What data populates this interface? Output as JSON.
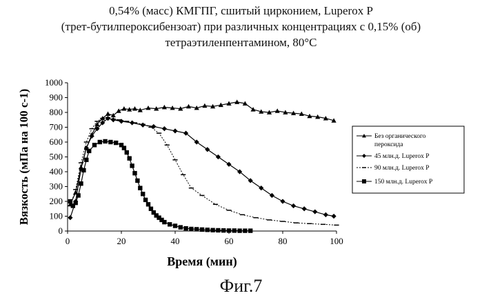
{
  "title_lines": [
    "0,54% (масс) КМГПГ, сшитый цирконием, Luperox P",
    "(трет-бутилпероксибензоат) при различных концентрациях с 0,15% (об)",
    "тетраэтиленпентамином, 80°С"
  ],
  "caption": "Фиг.7",
  "chart_data": {
    "type": "line",
    "xlabel": "Время (мин)",
    "ylabel": "Вязкость (мПа на 100 с-1)",
    "xlim": [
      0,
      100
    ],
    "ylim": [
      0,
      1000
    ],
    "xticks": [
      0,
      20,
      40,
      60,
      80,
      100
    ],
    "yticks": [
      0,
      100,
      200,
      300,
      400,
      500,
      600,
      700,
      800,
      900,
      1000
    ],
    "grid": false,
    "legend_position": "right",
    "series": [
      {
        "name": "Без органического пероксида",
        "marker": "triangle",
        "x": [
          1,
          3,
          5,
          7,
          9,
          11,
          13,
          15,
          17,
          19,
          21,
          23,
          25,
          27,
          30,
          33,
          36,
          39,
          42,
          45,
          48,
          51,
          54,
          57,
          60,
          63,
          66,
          69,
          72,
          75,
          78,
          81,
          84,
          87,
          90,
          93,
          96,
          99
        ],
        "y": [
          180,
          260,
          430,
          560,
          650,
          720,
          760,
          790,
          780,
          810,
          825,
          820,
          825,
          815,
          830,
          825,
          835,
          830,
          825,
          840,
          830,
          845,
          840,
          850,
          860,
          870,
          860,
          820,
          805,
          800,
          810,
          800,
          795,
          790,
          775,
          770,
          760,
          745
        ]
      },
      {
        "name": "45 млн.д. Luperox P",
        "marker": "diamond",
        "x": [
          1,
          3,
          5,
          7,
          9,
          11,
          13,
          15,
          17,
          20,
          24,
          28,
          32,
          36,
          40,
          44,
          48,
          52,
          56,
          60,
          64,
          68,
          72,
          76,
          80,
          84,
          88,
          92,
          96,
          99
        ],
        "y": [
          90,
          200,
          420,
          560,
          640,
          690,
          730,
          760,
          750,
          740,
          730,
          715,
          705,
          690,
          675,
          660,
          600,
          550,
          500,
          450,
          400,
          340,
          290,
          240,
          200,
          170,
          150,
          130,
          110,
          100
        ]
      },
      {
        "name": "90 млн.д. Luperox P",
        "marker": "dash",
        "x": [
          1,
          3,
          5,
          7,
          9,
          11,
          13,
          15,
          17,
          19,
          22,
          25,
          28,
          31,
          34,
          37,
          40,
          43,
          46,
          50,
          55,
          60,
          65,
          70,
          75,
          80,
          85,
          90,
          95,
          100
        ],
        "y": [
          170,
          280,
          460,
          600,
          690,
          740,
          760,
          765,
          755,
          750,
          740,
          730,
          720,
          700,
          660,
          580,
          480,
          380,
          290,
          240,
          180,
          140,
          110,
          90,
          75,
          65,
          55,
          50,
          45,
          40
        ]
      },
      {
        "name": "150 млн.д. Luperox P",
        "marker": "square",
        "x": [
          1,
          2,
          3,
          4,
          5,
          6,
          7,
          8,
          10,
          12,
          14,
          16,
          18,
          20,
          21,
          22,
          23,
          24,
          25,
          26,
          27,
          28,
          29,
          30,
          31,
          32,
          33,
          34,
          35,
          36,
          38,
          40,
          42,
          44,
          46,
          48,
          50,
          52,
          54,
          56,
          58,
          60,
          62,
          64,
          66,
          68
        ],
        "y": [
          200,
          170,
          190,
          240,
          320,
          410,
          480,
          540,
          580,
          600,
          605,
          600,
          595,
          580,
          560,
          530,
          490,
          440,
          390,
          340,
          290,
          250,
          210,
          180,
          150,
          125,
          105,
          90,
          75,
          60,
          45,
          35,
          25,
          18,
          14,
          12,
          10,
          8,
          6,
          5,
          4,
          3,
          3,
          2,
          2,
          2
        ]
      }
    ]
  }
}
